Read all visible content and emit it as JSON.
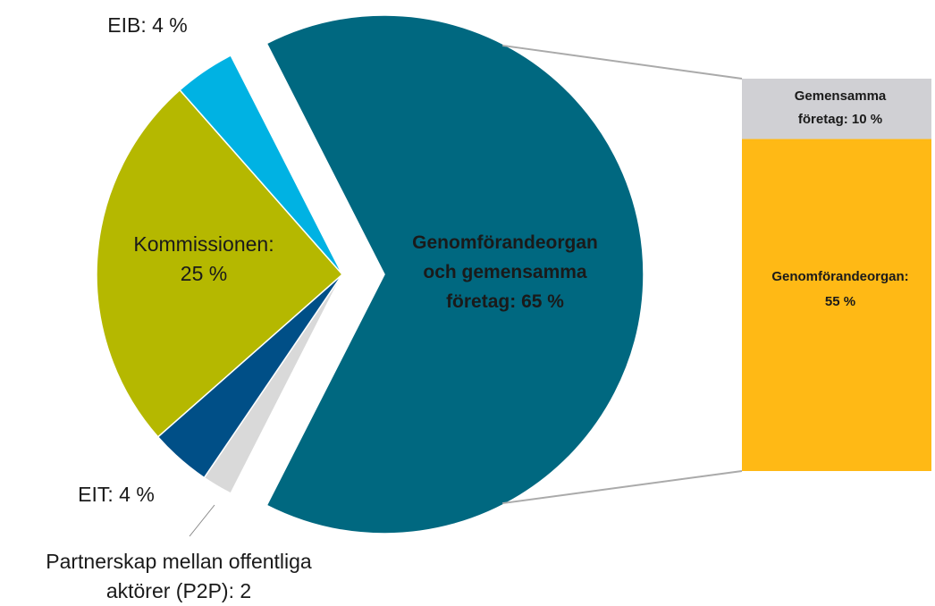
{
  "chart_data": {
    "type": "pie",
    "values": [
      65,
      2,
      4,
      25,
      4
    ],
    "value_labels": [
      "Genomförandeorgan och gemensamma företag: 65 %",
      "Partnerskap mellan offentliga aktörer (P2P): 2 %",
      "EIT: 4 %",
      "Kommissionen: 25 %",
      "EIB: 4 %"
    ],
    "colors": [
      "#006880",
      "#d9d9d9",
      "#004f87",
      "#b5b800",
      "#00b2e3"
    ],
    "breakdown": {
      "values": [
        10,
        55
      ],
      "value_labels": [
        "Gemensamma företag: 10 %",
        "Genomförandeorgan: 55 %"
      ],
      "colors": [
        "#d0d0d4",
        "#ffb915"
      ]
    }
  }
}
